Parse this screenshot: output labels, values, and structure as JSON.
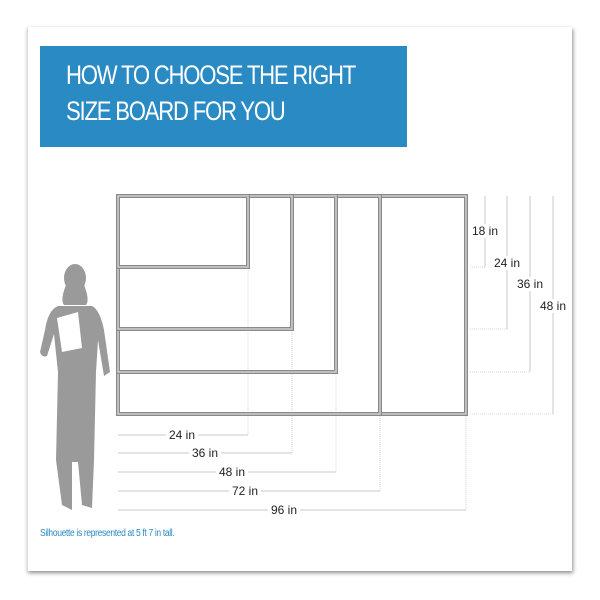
{
  "title": {
    "line1": "HOW TO CHOOSE THE RIGHT",
    "line2": "SIZE BOARD FOR YOU"
  },
  "accent_color": "#2a8ac4",
  "boards": [
    {
      "width_in": 24,
      "height_in": 18
    },
    {
      "width_in": 36,
      "height_in": 24
    },
    {
      "width_in": 48,
      "height_in": 36
    },
    {
      "width_in": 72,
      "height_in": 48
    },
    {
      "width_in": 96,
      "height_in": 48
    }
  ],
  "width_labels": [
    "24 in",
    "36 in",
    "48 in",
    "72 in",
    "96 in"
  ],
  "height_labels": [
    "18 in",
    "24 in",
    "36 in",
    "48 in"
  ],
  "silhouette_icon": "woman-silhouette-holding-folder",
  "note": "Silhouette is represented at 5 ft 7 in tall."
}
